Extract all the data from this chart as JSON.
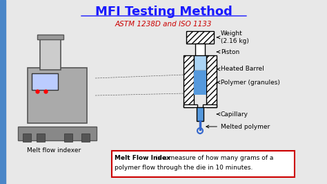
{
  "bg_color": "#e8e8e8",
  "title": "MFI Testing Method",
  "title_color": "#1a1aff",
  "subtitle": "ASTM 1238D and ISO 1133",
  "subtitle_color": "#cc0000",
  "label_weight": "Weight\n(2.16 kg)",
  "label_piston": "Piston",
  "label_barrel": "Heated Barrel",
  "label_polymer": "Polymer (granules)",
  "label_capillary": "Capillary",
  "label_melted": "Melted polymer",
  "label_indexer": "Melt flow indexer",
  "box_text_bold": "Melt Flow Index",
  "box_text_normal": " is a measure of how many grams of a\npolymer flow through the die in 10 minutes.",
  "box_border_color": "#cc0000",
  "blue_bar_color": "#4a86c8",
  "hatch_color": "#888888",
  "barrel_fill": "#5599dd",
  "font_size_label": 6.5
}
